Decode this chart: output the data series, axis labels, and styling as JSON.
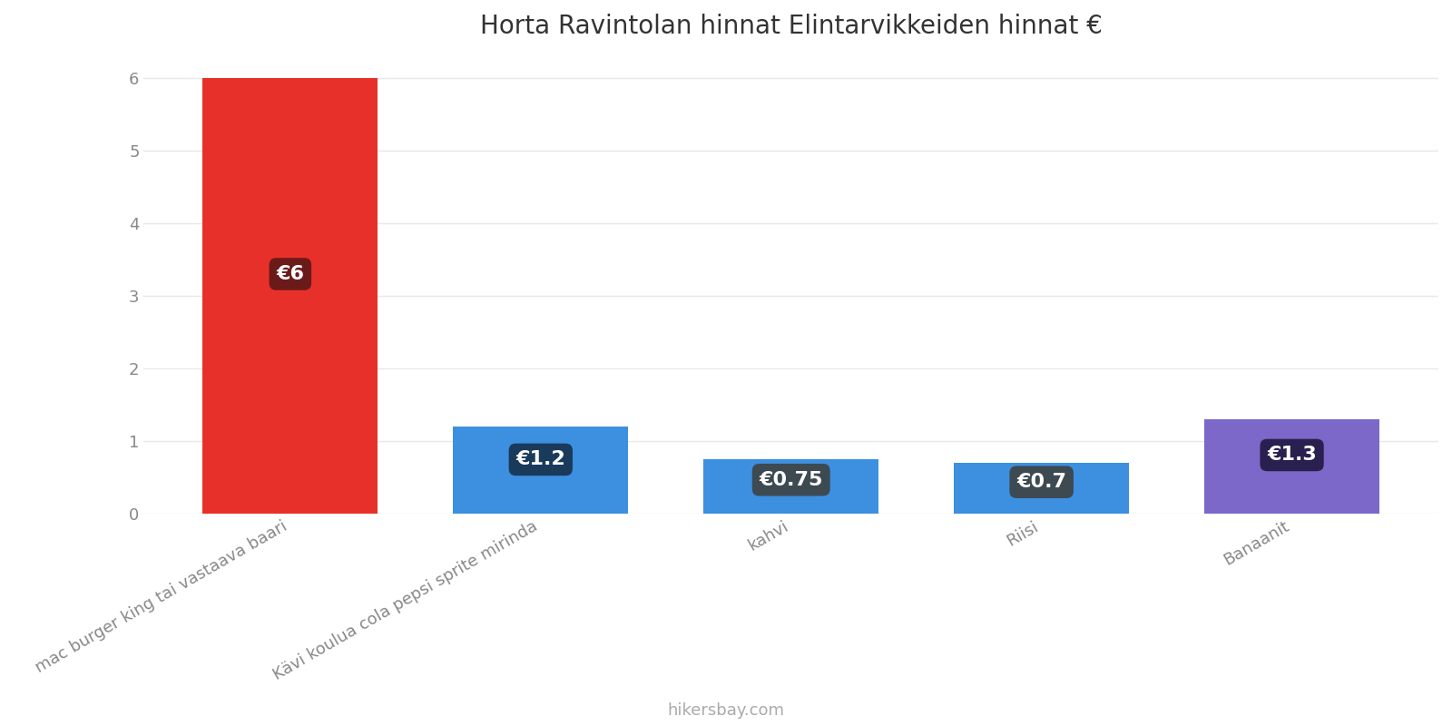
{
  "title": "Horta Ravintolan hinnat Elintarvikkeiden hinnat €",
  "categories": [
    "mac burger king tai vastaava baari",
    "Kävi koulua cola pepsi sprite mirinda",
    "kahvi",
    "Riisi",
    "Banaanit"
  ],
  "values": [
    6.0,
    1.2,
    0.75,
    0.7,
    1.3
  ],
  "bar_colors": [
    "#e8302a",
    "#3d8fe0",
    "#3d8fe0",
    "#3d8fe0",
    "#7b68c8"
  ],
  "label_bg_colors": [
    "#6b1a1a",
    "#1a3a5c",
    "#3d4a52",
    "#3d4a52",
    "#2a2050"
  ],
  "labels": [
    "€6",
    "€1.2",
    "€0.75",
    "€0.7",
    "€1.3"
  ],
  "ylim": [
    0,
    6.3
  ],
  "yticks": [
    0,
    1,
    2,
    3,
    4,
    5,
    6
  ],
  "background_color": "#ffffff",
  "grid_color": "#e8e8e8",
  "footer_text": "hikersbay.com",
  "title_fontsize": 20,
  "label_fontsize": 16,
  "tick_fontsize": 13,
  "footer_fontsize": 13,
  "bar_width": 0.7
}
